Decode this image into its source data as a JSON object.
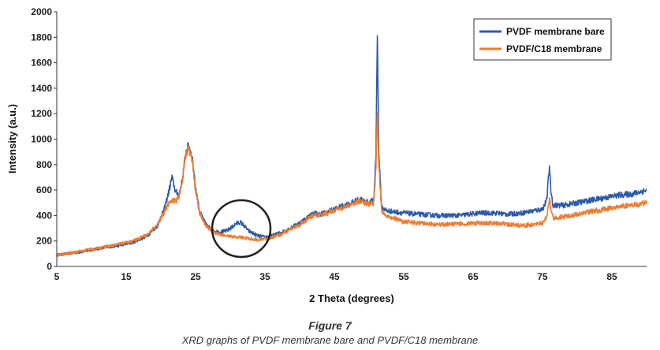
{
  "figure": {
    "title": "Figure 7",
    "caption": "XRD graphs of PVDF membrane bare and PVDF/C18 membrane"
  },
  "chart_data": {
    "type": "line",
    "xlabel": "2 Theta (degrees)",
    "ylabel": "Intensity (a.u.)",
    "xlim": [
      5,
      90
    ],
    "ylim": [
      0,
      2000
    ],
    "x_ticks": [
      5,
      15,
      25,
      35,
      45,
      55,
      65,
      75,
      85
    ],
    "y_ticks": [
      0,
      200,
      400,
      600,
      800,
      1000,
      1200,
      1400,
      1600,
      1800,
      2000
    ],
    "grid": false,
    "legend_position": "top-right",
    "series": [
      {
        "name": "PVDF membrane bare",
        "color": "#2E5AA8",
        "x": [
          5,
          8,
          10,
          12,
          14,
          16,
          18,
          19.5,
          20.5,
          21.2,
          21.6,
          22.1,
          22.6,
          23.1,
          23.6,
          24.0,
          24.5,
          25.0,
          25.6,
          26.5,
          27.5,
          28.5,
          29.5,
          30.3,
          30.9,
          31.5,
          32.0,
          32.6,
          33.3,
          34.0,
          35.0,
          36.0,
          37.5,
          39.0,
          40.5,
          41.5,
          42.2,
          42.7,
          43.5,
          45.0,
          46.5,
          47.5,
          48.3,
          48.8,
          49.3,
          50.0,
          50.7,
          51.0,
          51.2,
          51.4,
          51.8,
          52.4,
          53.5,
          55.0,
          57.0,
          60.0,
          63.0,
          66.0,
          68.0,
          70.0,
          72.0,
          74.0,
          75.0,
          75.6,
          76.0,
          76.2,
          76.5,
          77.0,
          78.0,
          80.0,
          82.0,
          84.0,
          86.0,
          88.0,
          90.0
        ],
        "values": [
          90,
          110,
          130,
          150,
          165,
          190,
          240,
          320,
          450,
          600,
          700,
          590,
          560,
          680,
          900,
          950,
          870,
          620,
          430,
          330,
          280,
          270,
          280,
          310,
          340,
          345,
          320,
          280,
          260,
          240,
          230,
          240,
          270,
          310,
          360,
          400,
          420,
          410,
          420,
          450,
          480,
          500,
          520,
          530,
          510,
          500,
          520,
          900,
          1870,
          900,
          470,
          440,
          430,
          420,
          410,
          400,
          400,
          420,
          420,
          410,
          420,
          440,
          450,
          520,
          790,
          600,
          480,
          480,
          480,
          500,
          520,
          540,
          560,
          570,
          600
        ]
      },
      {
        "name": "PVDF/C18 membrane",
        "color": "#ED7D31",
        "x": [
          5,
          8,
          10,
          12,
          14,
          16,
          18,
          19.5,
          20.5,
          21.2,
          21.6,
          22.1,
          22.6,
          23.1,
          23.6,
          24.0,
          24.5,
          25.0,
          25.6,
          26.5,
          27.5,
          28.5,
          29.5,
          30.3,
          30.9,
          31.5,
          32.0,
          32.6,
          33.3,
          34.0,
          35.0,
          36.0,
          37.5,
          39.0,
          40.5,
          41.5,
          42.2,
          42.7,
          43.5,
          45.0,
          46.5,
          47.5,
          48.3,
          48.8,
          49.3,
          50.0,
          50.7,
          51.0,
          51.2,
          51.4,
          51.8,
          52.4,
          53.5,
          55.0,
          57.0,
          60.0,
          63.0,
          66.0,
          68.0,
          70.0,
          72.0,
          74.0,
          75.0,
          75.6,
          76.0,
          76.2,
          76.5,
          77.0,
          78.0,
          80.0,
          82.0,
          84.0,
          86.0,
          88.0,
          90.0
        ],
        "values": [
          90,
          115,
          135,
          155,
          175,
          200,
          250,
          330,
          430,
          500,
          520,
          510,
          540,
          680,
          880,
          920,
          840,
          600,
          420,
          320,
          270,
          250,
          240,
          235,
          230,
          230,
          225,
          220,
          215,
          210,
          215,
          225,
          255,
          300,
          345,
          385,
          405,
          400,
          410,
          440,
          470,
          490,
          505,
          515,
          500,
          490,
          500,
          800,
          1220,
          800,
          440,
          400,
          380,
          350,
          340,
          330,
          335,
          340,
          340,
          330,
          320,
          330,
          340,
          390,
          540,
          450,
          380,
          380,
          390,
          410,
          430,
          450,
          470,
          480,
          500
        ]
      }
    ]
  }
}
